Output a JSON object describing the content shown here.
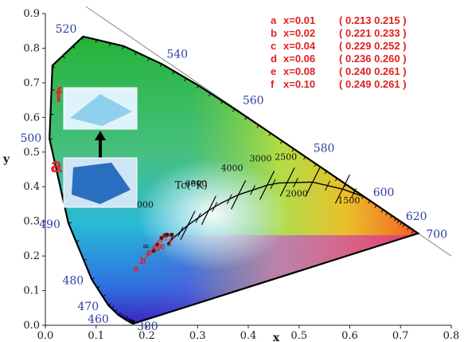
{
  "chart_data": {
    "type": "scatter",
    "title": "",
    "xlabel": "x",
    "ylabel": "y",
    "xlim": [
      0.0,
      0.8
    ],
    "ylim": [
      0.0,
      0.9
    ],
    "x_ticks": [
      "0.0",
      "0.1",
      "0.2",
      "0.3",
      "0.4",
      "0.5",
      "0.6",
      "0.7",
      "0.8"
    ],
    "y_ticks": [
      "0.0",
      "0.1",
      "0.2",
      "0.3",
      "0.4",
      "0.5",
      "0.6",
      "0.7",
      "0.8",
      "0.9"
    ],
    "x_tick_values": [
      0.0,
      0.1,
      0.2,
      0.3,
      0.4,
      0.5,
      0.6,
      0.7,
      0.8
    ],
    "y_tick_values": [
      0.0,
      0.1,
      0.2,
      0.3,
      0.4,
      0.5,
      0.6,
      0.7,
      0.8,
      0.9
    ],
    "grid": false,
    "locus": [
      [
        0.1741,
        0.005
      ],
      [
        0.1738,
        0.0049
      ],
      [
        0.1736,
        0.005
      ],
      [
        0.1733,
        0.0048
      ],
      [
        0.1726,
        0.0048
      ],
      [
        0.1714,
        0.0051
      ],
      [
        0.1689,
        0.0069
      ],
      [
        0.1644,
        0.0109
      ],
      [
        0.1566,
        0.0177
      ],
      [
        0.144,
        0.0297
      ],
      [
        0.1241,
        0.0578
      ],
      [
        0.0913,
        0.1327
      ],
      [
        0.0454,
        0.295
      ],
      [
        0.0082,
        0.5384
      ],
      [
        0.0139,
        0.7502
      ],
      [
        0.0743,
        0.8338
      ],
      [
        0.1547,
        0.8059
      ],
      [
        0.2296,
        0.7543
      ],
      [
        0.3016,
        0.6923
      ],
      [
        0.3731,
        0.6245
      ],
      [
        0.4441,
        0.5547
      ],
      [
        0.5125,
        0.4866
      ],
      [
        0.5752,
        0.4242
      ],
      [
        0.627,
        0.3725
      ],
      [
        0.6658,
        0.334
      ],
      [
        0.6915,
        0.3083
      ],
      [
        0.7079,
        0.292
      ],
      [
        0.7347,
        0.2653
      ]
    ],
    "wavelength_labels": [
      {
        "text": "380",
        "x": 0.1741,
        "y": 0.005
      },
      {
        "text": "460",
        "x": 0.144,
        "y": 0.0297
      },
      {
        "text": "470",
        "x": 0.1241,
        "y": 0.0578
      },
      {
        "text": "480",
        "x": 0.0913,
        "y": 0.1327
      },
      {
        "text": "490",
        "x": 0.0454,
        "y": 0.295
      },
      {
        "text": "500",
        "x": 0.0082,
        "y": 0.5384
      },
      {
        "text": "520",
        "x": 0.0743,
        "y": 0.8338
      },
      {
        "text": "540",
        "x": 0.2296,
        "y": 0.7543
      },
      {
        "text": "560",
        "x": 0.3731,
        "y": 0.6245
      },
      {
        "text": "580",
        "x": 0.5125,
        "y": 0.4866
      },
      {
        "text": "600",
        "x": 0.627,
        "y": 0.3725
      },
      {
        "text": "620",
        "x": 0.6915,
        "y": 0.3083
      },
      {
        "text": "700",
        "x": 0.7347,
        "y": 0.2653
      }
    ],
    "planckian_locus": [
      [
        0.2399,
        0.2342
      ],
      [
        0.2525,
        0.2523
      ],
      [
        0.2806,
        0.2883
      ],
      [
        0.3221,
        0.3318
      ],
      [
        0.3451,
        0.3516
      ],
      [
        0.3805,
        0.3768
      ],
      [
        0.4369,
        0.4041
      ],
      [
        0.4599,
        0.4106
      ],
      [
        0.5267,
        0.4133
      ],
      [
        0.5857,
        0.3931
      ],
      [
        0.63,
        0.37
      ]
    ],
    "cct_labels": [
      {
        "text": "10000",
        "x": 0.2807,
        "y": 0.2883
      },
      {
        "text": "6000",
        "x": 0.3221,
        "y": 0.3318
      },
      {
        "text": "4000",
        "x": 0.3805,
        "y": 0.3768
      },
      {
        "text": "3000",
        "x": 0.4369,
        "y": 0.4041
      },
      {
        "text": "2500",
        "x": 0.477,
        "y": 0.4137
      },
      {
        "text": "2000",
        "x": 0.5267,
        "y": 0.4133
      },
      {
        "text": "1500",
        "x": 0.5857,
        "y": 0.3931
      },
      {
        "text": "∞",
        "x": 0.2399,
        "y": 0.2342
      }
    ],
    "tc_label": "Tc(°K)",
    "series": [
      {
        "name": "a",
        "x_label": "x=0.01",
        "x": 0.213,
        "y": 0.215,
        "coords": "( 0.213  0.215 )"
      },
      {
        "name": "b",
        "x_label": "x=0.02",
        "x": 0.221,
        "y": 0.233,
        "coords": "( 0.221  0.233 )"
      },
      {
        "name": "c",
        "x_label": "x=0.04",
        "x": 0.229,
        "y": 0.252,
        "coords": "( 0.229  0.252 )"
      },
      {
        "name": "d",
        "x_label": "x=0.06",
        "x": 0.236,
        "y": 0.26,
        "coords": "( 0.236  0.260 )"
      },
      {
        "name": "e",
        "x_label": "x=0.08",
        "x": 0.24,
        "y": 0.261,
        "coords": "( 0.240  0.261 )"
      },
      {
        "name": "f",
        "x_label": "x=0.10",
        "x": 0.249,
        "y": 0.261,
        "coords": "( 0.249  0.261 )"
      }
    ],
    "legend_placement": "top-right",
    "insets": [
      {
        "letter": "f",
        "color": "#8fd0ee"
      },
      {
        "letter": "a",
        "color": "#2a6ec0"
      }
    ]
  }
}
